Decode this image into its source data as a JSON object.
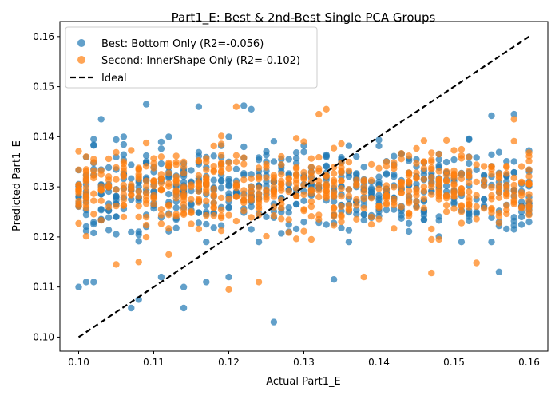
{
  "chart_data": {
    "type": "scatter",
    "title": "Part1_E: Best & 2nd-Best Single PCA Groups",
    "xlabel": "Actual Part1_E",
    "ylabel": "Predicted Part1_E",
    "xlim": [
      0.0975,
      0.1625
    ],
    "ylim": [
      0.0972,
      0.163
    ],
    "x_ticks": [
      "0.10",
      "0.11",
      "0.12",
      "0.13",
      "0.14",
      "0.15",
      "0.16"
    ],
    "y_ticks": [
      "0.10",
      "0.11",
      "0.12",
      "0.13",
      "0.14",
      "0.15",
      "0.16"
    ],
    "legend_position": "top-left",
    "grid": false,
    "series": [
      {
        "name": "Best: Bottom Only (R2=-0.056)",
        "color": "#1f77b4",
        "x_range": [
          0.1,
          0.16
        ],
        "y_center": 0.1295,
        "y_spread": 0.0055,
        "count": 600,
        "outliers": [
          [
            0.1,
            0.11
          ],
          [
            0.101,
            0.111
          ],
          [
            0.102,
            0.111
          ],
          [
            0.107,
            0.1058
          ],
          [
            0.108,
            0.1075
          ],
          [
            0.111,
            0.112
          ],
          [
            0.114,
            0.1058
          ],
          [
            0.114,
            0.11
          ],
          [
            0.117,
            0.111
          ],
          [
            0.12,
            0.112
          ],
          [
            0.126,
            0.103
          ],
          [
            0.109,
            0.1465
          ],
          [
            0.116,
            0.146
          ],
          [
            0.122,
            0.1462
          ],
          [
            0.123,
            0.1455
          ],
          [
            0.103,
            0.1435
          ],
          [
            0.134,
            0.1115
          ],
          [
            0.156,
            0.113
          ],
          [
            0.158,
            0.1445
          ],
          [
            0.155,
            0.1442
          ]
        ]
      },
      {
        "name": "Second: InnerShape Only (R2=-0.102)",
        "color": "#ff7f0e",
        "x_range": [
          0.1,
          0.16
        ],
        "y_center": 0.13,
        "y_spread": 0.005,
        "count": 600,
        "outliers": [
          [
            0.12,
            0.1095
          ],
          [
            0.124,
            0.111
          ],
          [
            0.121,
            0.146
          ],
          [
            0.133,
            0.1455
          ],
          [
            0.132,
            0.1445
          ],
          [
            0.138,
            0.112
          ],
          [
            0.147,
            0.1128
          ],
          [
            0.153,
            0.1148
          ],
          [
            0.158,
            0.1435
          ],
          [
            0.105,
            0.1145
          ],
          [
            0.108,
            0.115
          ],
          [
            0.112,
            0.1165
          ]
        ]
      },
      {
        "name": "Ideal",
        "color": "#000000",
        "type": "line",
        "style": "dashed",
        "x": [
          0.1,
          0.16
        ],
        "y": [
          0.1,
          0.16
        ]
      }
    ]
  }
}
